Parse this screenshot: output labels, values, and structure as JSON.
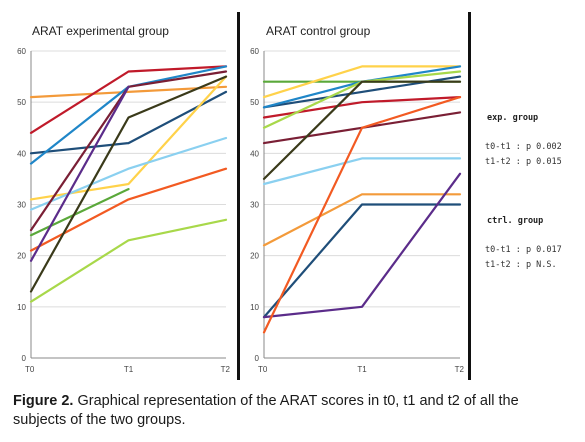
{
  "figure": {
    "caption_label": "Figure 2.",
    "caption_text": "Graphical representation of the ARAT scores in t0, t1 and t2 of all the subjects of the two groups.",
    "stats": {
      "exp_heading": "exp. group",
      "exp_line1": "t0-t1 : p 0.002",
      "exp_line2": "t1-t2 : p 0.015",
      "ctrl_heading": "ctrl. group",
      "ctrl_line1": "t0-t1 : p 0.017",
      "ctrl_line2": "t1-t2 : p N.S."
    }
  },
  "chart_data": [
    {
      "type": "line",
      "title": "ARAT experimental group",
      "categories": [
        "T0",
        "T1",
        "T2"
      ],
      "ylim": [
        0,
        60
      ],
      "yticks": [
        "0",
        "10",
        "20",
        "30",
        "40",
        "50",
        "60"
      ],
      "grid": true,
      "series": [
        {
          "values": [
            51,
            52,
            53
          ],
          "color": "#f39a3a"
        },
        {
          "values": [
            44,
            56,
            57
          ],
          "color": "#c01a2a"
        },
        {
          "values": [
            40,
            42,
            52
          ],
          "color": "#1f4e79"
        },
        {
          "values": [
            38,
            53,
            57
          ],
          "color": "#1f86c8"
        },
        {
          "values": [
            31,
            34,
            55
          ],
          "color": "#ffd24a"
        },
        {
          "values": [
            29,
            37,
            43
          ],
          "color": "#8ad0f0"
        },
        {
          "values": [
            25,
            53,
            56
          ],
          "color": "#7a1f35"
        },
        {
          "values": [
            24,
            33,
            null
          ],
          "color": "#5aa83a"
        },
        {
          "values": [
            21,
            31,
            37
          ],
          "color": "#f25a22"
        },
        {
          "values": [
            19,
            53,
            null
          ],
          "color": "#5b2c8a"
        },
        {
          "values": [
            13,
            47,
            55
          ],
          "color": "#3a3a1a"
        },
        {
          "values": [
            11,
            23,
            27
          ],
          "color": "#a8d84a"
        }
      ]
    },
    {
      "type": "line",
      "title": "ARAT control group",
      "categories": [
        "T0",
        "T1",
        "T2"
      ],
      "ylim": [
        0,
        60
      ],
      "yticks": [
        "0",
        "10",
        "20",
        "30",
        "40",
        "50",
        "60"
      ],
      "grid": true,
      "series": [
        {
          "values": [
            54,
            54,
            54
          ],
          "color": "#5aa83a"
        },
        {
          "values": [
            51,
            57,
            57
          ],
          "color": "#ffd24a"
        },
        {
          "values": [
            49,
            52,
            55
          ],
          "color": "#1f4e79"
        },
        {
          "values": [
            49,
            54,
            57
          ],
          "color": "#1f86c8"
        },
        {
          "values": [
            47,
            50,
            51
          ],
          "color": "#c01a2a"
        },
        {
          "values": [
            45,
            54,
            56
          ],
          "color": "#a8d84a"
        },
        {
          "values": [
            42,
            45,
            48
          ],
          "color": "#7a1f35"
        },
        {
          "values": [
            35,
            54,
            54
          ],
          "color": "#3a3a1a"
        },
        {
          "values": [
            34,
            39,
            39
          ],
          "color": "#8ad0f0"
        },
        {
          "values": [
            22,
            32,
            32
          ],
          "color": "#f39a3a"
        },
        {
          "values": [
            8,
            30,
            30
          ],
          "color": "#1f4e79"
        },
        {
          "values": [
            8,
            10,
            36
          ],
          "color": "#5b2c8a"
        },
        {
          "values": [
            5,
            45,
            51
          ],
          "color": "#f25a22"
        }
      ]
    }
  ]
}
